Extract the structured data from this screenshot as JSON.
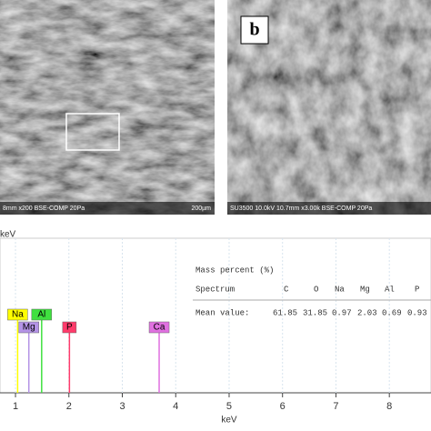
{
  "panels": [
    {
      "caption": "8mm x200 BSE-COMP 20Pa",
      "scale": "200µm"
    },
    {
      "label": "b",
      "caption": "SU3500 10.0kV 10.7mm x3.00k BSE-COMP 20Pa"
    }
  ],
  "chart_data": {
    "type": "spectrum",
    "ylabel": "keV",
    "xlabel": "keV",
    "xlim": [
      0.71,
      8.78
    ],
    "xticks": [
      1,
      2,
      3,
      4,
      5,
      6,
      7,
      8
    ],
    "grid": true,
    "peaks": [
      {
        "name": "Na",
        "energy": 1.04,
        "color": "#ffff00"
      },
      {
        "name": "Mg",
        "energy": 1.25,
        "color": "#b493e6"
      },
      {
        "name": "Al",
        "energy": 1.49,
        "color": "#3fe03f"
      },
      {
        "name": "P",
        "energy": 2.01,
        "color": "#ff3b6b"
      },
      {
        "name": "Ca",
        "energy": 3.69,
        "color": "#e070e0"
      }
    ],
    "table": {
      "title": "Mass percent (%)",
      "columns": [
        "Spectrum",
        "C",
        "O",
        "Na",
        "Mg",
        "Al",
        "P"
      ],
      "rows": [
        [
          "Mean value:",
          61.85,
          31.85,
          0.97,
          2.03,
          0.69,
          0.93
        ]
      ]
    }
  }
}
